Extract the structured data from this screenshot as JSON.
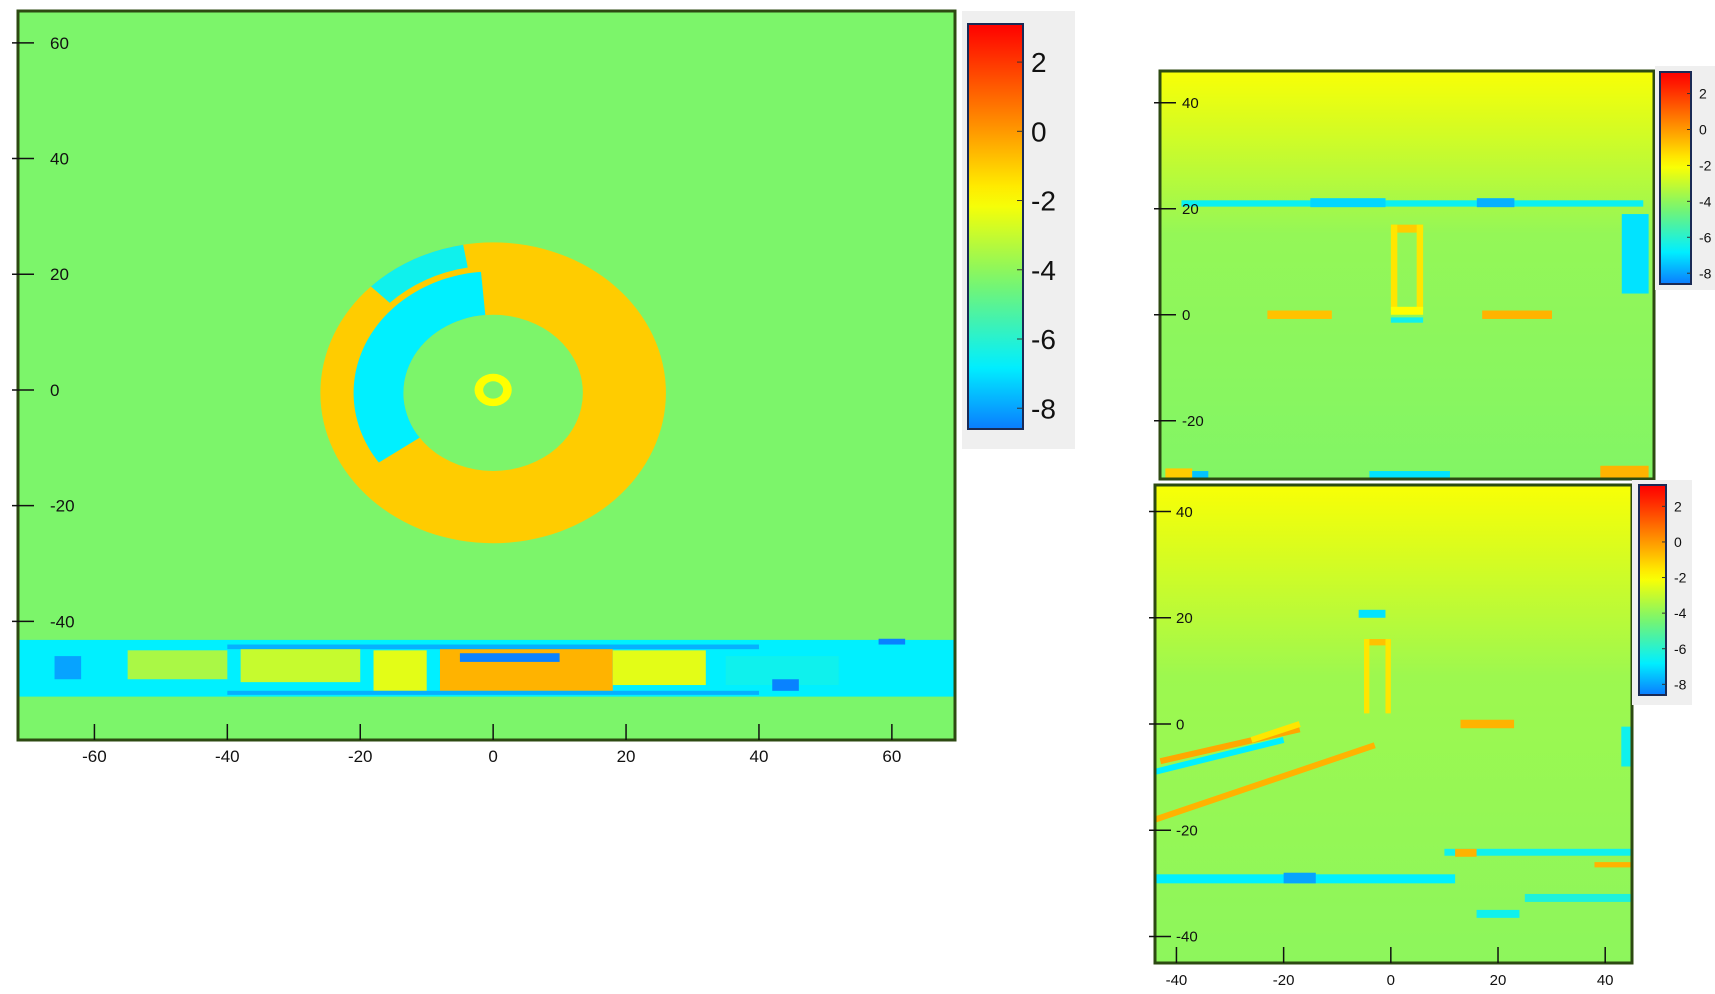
{
  "colormap": {
    "name": "jet",
    "stops": [
      [
        -8.6,
        "#0a7cff"
      ],
      [
        -6.8,
        "#00f0ff"
      ],
      [
        -4.3,
        "#7cf56a"
      ],
      [
        -2.0,
        "#ffff00"
      ],
      [
        0.0,
        "#ff9900"
      ],
      [
        3.1,
        "#ff0000"
      ]
    ]
  },
  "chart_data": [
    {
      "type": "heatmap",
      "id": "main",
      "xlim": [
        -71.5,
        69.5
      ],
      "ylim": [
        -60.5,
        65.5
      ],
      "xticks": [
        -60,
        -40,
        -20,
        0,
        20,
        40,
        60
      ],
      "yticks": [
        60,
        40,
        20,
        0,
        -20,
        -40
      ],
      "colorbar": {
        "range": [
          -8.6,
          3.1
        ],
        "ticks": [
          2,
          0,
          -2,
          -4,
          -6,
          -8
        ]
      },
      "background": {
        "top": -4.3,
        "bottom": -4.3
      },
      "features": {
        "rings": [
          {
            "cx": 0,
            "cy": -0.5,
            "r_outer": 26,
            "r_inner": 13.5,
            "value": -1.0
          },
          {
            "cx": 0,
            "cy": 0,
            "r_outer": 2.8,
            "r_inner": 1.5,
            "value": -2.0
          }
        ],
        "arcs": [
          {
            "cx": 0,
            "cy": -0.5,
            "r_outer": 21,
            "r_inner": 13.5,
            "from_deg": 95,
            "to_deg": 215,
            "value": -6.8
          },
          {
            "cx": 0,
            "cy": -0.5,
            "r_outer": 26,
            "r_inner": 22,
            "from_deg": 100,
            "to_deg": 135,
            "value": -6.5
          }
        ],
        "rects": [
          [
            -71.5,
            69.5,
            -43.2,
            -53,
            -6.8
          ],
          [
            -55,
            -40,
            -45,
            -50,
            -3.5
          ],
          [
            -38,
            -20,
            -44.5,
            -50.5,
            -3.0
          ],
          [
            -18,
            -10,
            -45,
            -52,
            -2.5
          ],
          [
            -8,
            18,
            -44.5,
            -52,
            -0.5
          ],
          [
            -5,
            10,
            -45.5,
            -47,
            -8.5
          ],
          [
            18,
            32,
            -45,
            -51,
            -2.5
          ],
          [
            35,
            52,
            -46,
            -51,
            -6.5
          ],
          [
            58,
            62,
            -43,
            -44,
            -8.5
          ],
          [
            -66,
            -62,
            -46,
            -50,
            -8.0
          ],
          [
            42,
            46,
            -50,
            -52,
            -8.5
          ],
          [
            -40,
            40,
            -44,
            -44.8,
            -7.8
          ],
          [
            -40,
            40,
            -52,
            -52.7,
            -7.8
          ]
        ],
        "lines": []
      }
    },
    {
      "type": "heatmap",
      "id": "top-right",
      "xlim": [
        -46,
        46
      ],
      "ylim": [
        -31,
        46
      ],
      "xticks": [],
      "yticks": [
        40,
        20,
        0,
        -20
      ],
      "colorbar": {
        "range": [
          -8.6,
          3.2
        ],
        "ticks": [
          2,
          0,
          -2,
          -4,
          -6,
          -8
        ]
      },
      "background": {
        "top": -2.1,
        "bottom": -4.2
      },
      "features": {
        "rings": [],
        "arcs": [],
        "rects": [
          [
            -42,
            44,
            21.6,
            20.4,
            -6.6
          ],
          [
            -18,
            -4,
            22,
            20.3,
            -7.2
          ],
          [
            13,
            20,
            22,
            20.3,
            -7.8
          ],
          [
            -3,
            3,
            17,
            15.5,
            -1.0
          ],
          [
            -3,
            -1.8,
            17,
            1,
            -1.5
          ],
          [
            1.8,
            3,
            17,
            1,
            -1.5
          ],
          [
            -3,
            3,
            1.5,
            0,
            -2.0
          ],
          [
            -3,
            3,
            -0.5,
            -1.5,
            -6.5
          ],
          [
            -26,
            -14,
            0.8,
            -0.8,
            -0.8
          ],
          [
            14,
            27,
            0.8,
            -0.8,
            -0.5
          ],
          [
            40,
            45,
            19,
            4,
            -7.0
          ],
          [
            -45,
            -40,
            -29,
            -31,
            -1.0
          ],
          [
            -40,
            -37,
            -29.5,
            -31,
            -7.5
          ],
          [
            -7,
            8,
            -29.5,
            -31,
            -7.0
          ],
          [
            36,
            45,
            -28.5,
            -31,
            -0.5
          ]
        ],
        "lines": []
      }
    },
    {
      "type": "heatmap",
      "id": "bottom-right",
      "xlim": [
        -44,
        45
      ],
      "ylim": [
        -45,
        45
      ],
      "xticks": [
        -40,
        -20,
        0,
        20,
        40
      ],
      "yticks": [
        40,
        20,
        0,
        -20,
        -40
      ],
      "colorbar": {
        "range": [
          -8.6,
          3.2
        ],
        "ticks": [
          2,
          0,
          -2,
          -4,
          -6,
          -8
        ]
      },
      "background": {
        "top": -2.1,
        "bottom": -4.0
      },
      "features": {
        "rings": [],
        "arcs": [],
        "rects": [
          [
            -6,
            -1,
            21.5,
            20,
            -7.0
          ],
          [
            -5,
            0,
            16,
            14.8,
            -0.8
          ],
          [
            -5,
            -4,
            16,
            2,
            -1.5
          ],
          [
            -1,
            0,
            16,
            2,
            -1.5
          ],
          [
            13,
            23,
            0.8,
            -0.8,
            -0.5
          ],
          [
            43,
            45,
            -0.5,
            -8,
            -6.5
          ],
          [
            -44,
            12,
            -28.3,
            -30,
            -6.8
          ],
          [
            -20,
            -14,
            -28,
            -30,
            -8.0
          ],
          [
            10,
            45,
            -23.5,
            -24.8,
            -6.5
          ],
          [
            12,
            16,
            -23.5,
            -25,
            -0.5
          ],
          [
            38,
            45,
            -26,
            -27,
            -0.5
          ],
          [
            25,
            45,
            -32,
            -33.5,
            -6.2
          ],
          [
            16,
            24,
            -35,
            -36.5,
            -6.5
          ]
        ],
        "lines": [
          [
            -44,
            -18,
            -3,
            -4,
            -0.5
          ],
          [
            -43,
            -7,
            -17,
            -1,
            -0.3
          ],
          [
            -26,
            -3,
            -17,
            0,
            -1.5
          ],
          [
            -44,
            -9,
            -20,
            -3,
            -6.8
          ]
        ]
      }
    }
  ]
}
